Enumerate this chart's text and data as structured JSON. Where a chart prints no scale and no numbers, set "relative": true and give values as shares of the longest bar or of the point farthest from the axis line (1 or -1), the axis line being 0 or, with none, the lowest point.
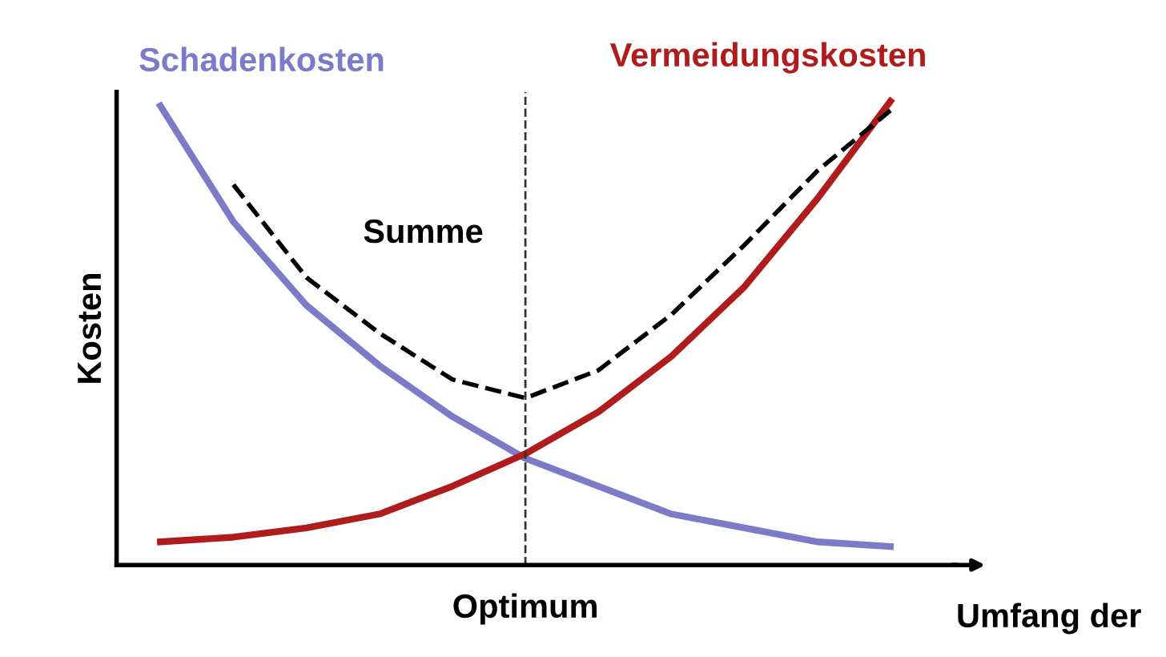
{
  "chart_data": {
    "type": "line",
    "relative": true,
    "ylabel": "Kosten",
    "xlabel": "Umfang der",
    "categories": [
      null,
      null,
      null,
      null,
      null,
      null,
      null,
      null,
      null,
      null,
      null
    ],
    "annotations": [
      "Optimum"
    ],
    "series": [
      {
        "name": "Schadenkosten",
        "color": "#7b7bc8",
        "values": [
          0.99,
          0.74,
          0.56,
          0.43,
          0.32,
          0.23,
          0.17,
          0.11,
          0.08,
          0.05,
          0.04
        ]
      },
      {
        "name": "Vermeidungskosten",
        "color": "#b01c1c",
        "values": [
          0.05,
          0.06,
          0.08,
          0.11,
          0.17,
          0.24,
          0.33,
          0.45,
          0.6,
          0.79,
          1.0
        ]
      },
      {
        "name": "Summe",
        "color": "#000000",
        "line_style": "dashed",
        "values": [
          null,
          0.82,
          0.62,
          0.5,
          0.4,
          0.36,
          0.42,
          0.54,
          0.69,
          0.85,
          0.98
        ]
      }
    ],
    "legend": false
  }
}
